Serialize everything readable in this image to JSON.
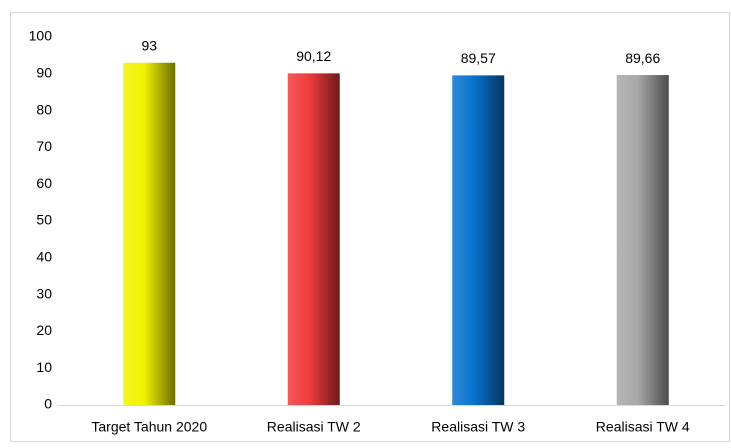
{
  "chart_data": {
    "type": "bar",
    "categories": [
      "Target Tahun 2020",
      "Realisasi TW 2",
      "Realisasi TW 3",
      "Realisasi TW 4"
    ],
    "values": [
      93,
      90.12,
      89.57,
      89.66
    ],
    "value_labels": [
      "93",
      "90,12",
      "89,57",
      "89,66"
    ],
    "colors": [
      "#f2f200",
      "#f23c3c",
      "#0a74d0",
      "#a8a8a8"
    ],
    "ylim": [
      0,
      100
    ],
    "yticks": [
      0,
      10,
      20,
      30,
      40,
      50,
      60,
      70,
      80,
      90,
      100
    ],
    "grid": false
  }
}
